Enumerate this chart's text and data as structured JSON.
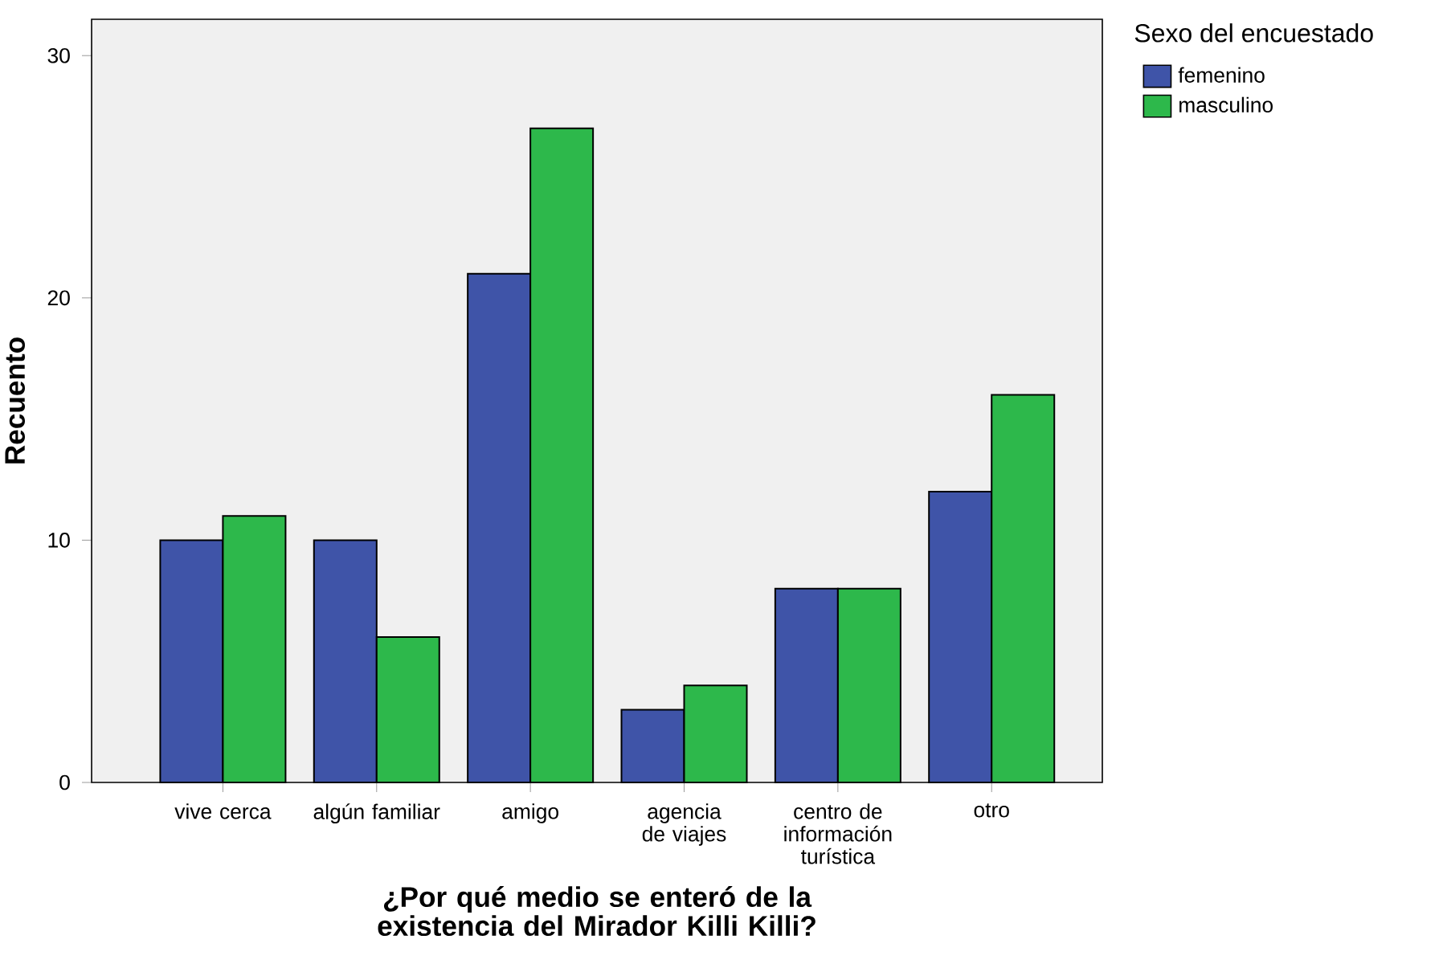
{
  "chart_data": {
    "type": "bar",
    "xlabel": "¿Por qué medio se enteró de la existencia del Mirador Killi Killi?",
    "ylabel": "Recuento",
    "legend_title": "Sexo del encuestado",
    "legend": "right",
    "categories": [
      "vive cerca",
      "algún familiar",
      "amigo",
      "agencia de viajes",
      "centro de información turística",
      "otro"
    ],
    "series": [
      {
        "name": "femenino",
        "color": "#3f54a8",
        "values": [
          10,
          10,
          21,
          3,
          8,
          12
        ]
      },
      {
        "name": "masculino",
        "color": "#2db84b",
        "values": [
          11,
          6,
          27,
          4,
          8,
          16
        ]
      }
    ],
    "ylim": [
      0,
      31.5
    ],
    "yticks": [
      0,
      10,
      20,
      30
    ],
    "grid": false
  }
}
